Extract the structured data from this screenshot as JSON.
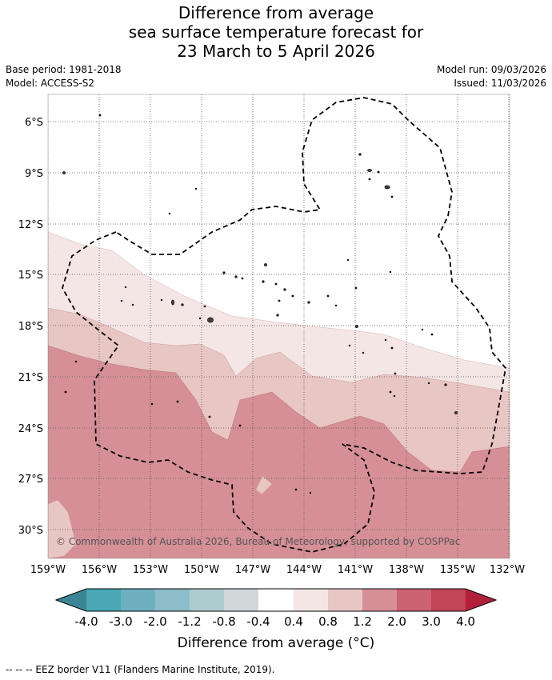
{
  "header": {
    "title_lines": [
      "Difference from average",
      "sea surface temperature forecast for",
      "23 March to 5 April 2026"
    ],
    "base_period": "Base period: 1981-2018",
    "model": "Model: ACCESS-S2",
    "model_run": "Model run: 09/03/2026",
    "issued": "Issued: 11/03/2026"
  },
  "map": {
    "lat_labels": [
      "6°S",
      "9°S",
      "12°S",
      "15°S",
      "18°S",
      "21°S",
      "24°S",
      "27°S",
      "30°S"
    ],
    "lon_labels": [
      "159°W",
      "156°W",
      "153°W",
      "150°W",
      "147°W",
      "144°W",
      "141°W",
      "138°W",
      "135°W",
      "132°W"
    ],
    "copyright": "© Commonwealth of Australia 2026, Bureau of Meteorology, supported by COSPPac"
  },
  "colorbar": {
    "ticks": [
      "-4.0",
      "-3.0",
      "-2.0",
      "-1.2",
      "-0.8",
      "-0.4",
      "0.4",
      "0.8",
      "1.2",
      "2.0",
      "3.0",
      "4.0"
    ],
    "colors": [
      "#3c8595",
      "#4aa7b6",
      "#6fb0c0",
      "#8dbdc9",
      "#adcbcf",
      "#d2d7da",
      "#ffffff",
      "#f4e6e5",
      "#e8c6c3",
      "#d68f97",
      "#cc6372",
      "#c34457",
      "#b21f3a"
    ],
    "title": "Difference from average (°C)"
  },
  "footer": "--  --  -- EEZ border V11 (Flanders Marine Institute, 2019)."
}
